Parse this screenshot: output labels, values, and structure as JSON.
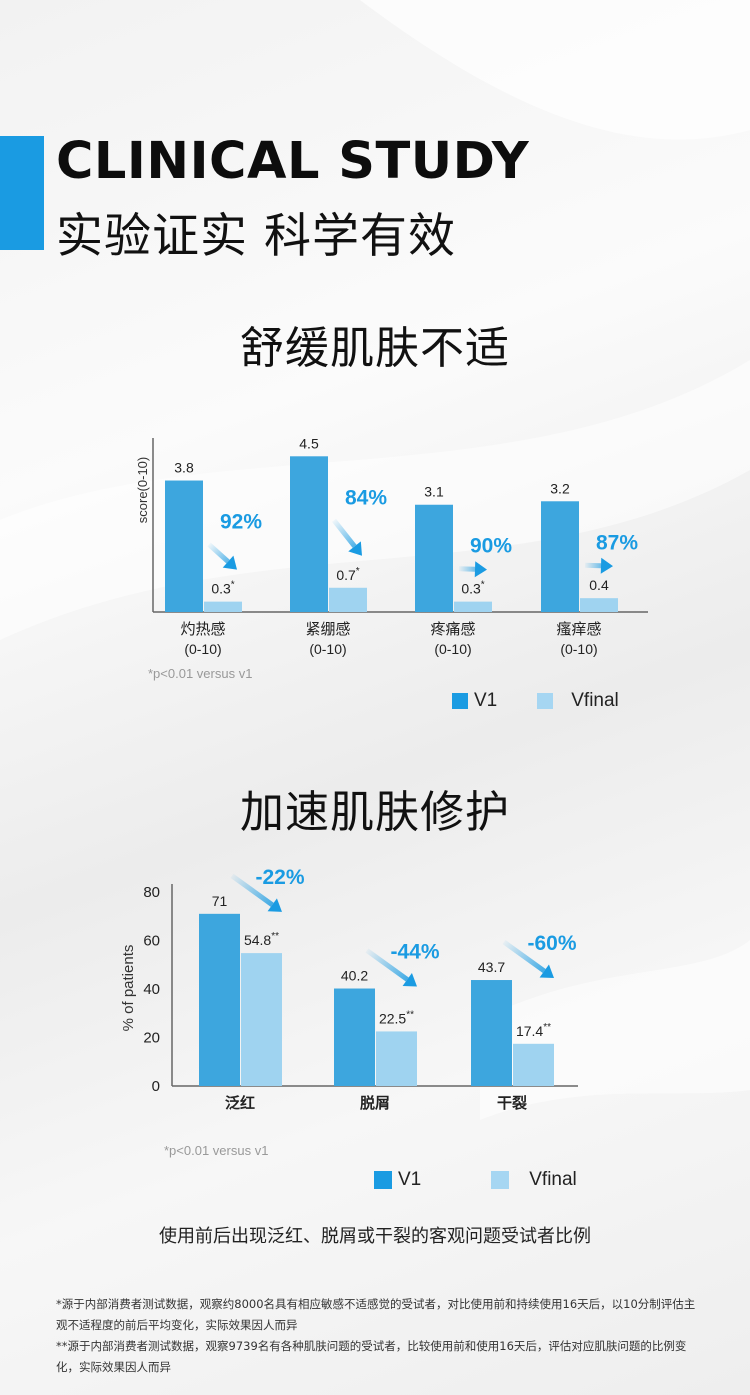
{
  "header": {
    "title_en": "CLINICAL STUDY",
    "title_cn": "实验证实 科学有效"
  },
  "colors": {
    "accent": "#1a9be2",
    "v1": "#3da6de",
    "vfinal": "#9fd3f0",
    "arrow": "#1a9be2"
  },
  "section1": {
    "title": "舒缓肌肤不适",
    "significance": "*p<0.01 versus v1",
    "legend": {
      "v1": "V1",
      "vfinal": "Vfinal"
    }
  },
  "section2": {
    "title": "加速肌肤修护",
    "significance": "*p<0.01 versus v1",
    "legend": {
      "v1": "V1",
      "vfinal": "Vfinal"
    },
    "caption": "使用前后出现泛红、脱屑或干裂的客观问题受试者比例"
  },
  "chart_data": [
    {
      "type": "bar",
      "title": "舒缓肌肤不适",
      "ylabel": "score(0-10)",
      "xlabel": "",
      "categories": [
        "灼热感",
        "紧绷感",
        "疼痛感",
        "瘙痒感"
      ],
      "category_sublabels": [
        "(0-10)",
        "(0-10)",
        "(0-10)",
        "(0-10)"
      ],
      "ylim": [
        0,
        5
      ],
      "grid": false,
      "legend_position": "bottom-right",
      "series": [
        {
          "name": "V1",
          "values": [
            3.8,
            4.5,
            3.1,
            3.2
          ],
          "labels": [
            "3.8",
            "4.5",
            "3.1",
            "3.2"
          ]
        },
        {
          "name": "Vfinal",
          "values": [
            0.3,
            0.7,
            0.3,
            0.4
          ],
          "labels": [
            "0.3",
            "0.7",
            "0.3",
            "0.4"
          ],
          "marks": [
            "*",
            "*",
            "*",
            ""
          ]
        }
      ],
      "annotations": [
        "92%",
        "84%",
        "90%",
        "87%"
      ]
    },
    {
      "type": "bar",
      "title": "加速肌肤修护",
      "ylabel": "% of patients",
      "xlabel": "",
      "categories": [
        "泛红",
        "脱屑",
        "干裂"
      ],
      "ylim": [
        0,
        80
      ],
      "yticks": [
        "0",
        "20",
        "40",
        "60",
        "80"
      ],
      "grid": false,
      "legend_position": "bottom-right",
      "series": [
        {
          "name": "V1",
          "values": [
            71,
            40.2,
            43.7
          ],
          "labels": [
            "71",
            "40.2",
            "43.7"
          ]
        },
        {
          "name": "Vfinal",
          "values": [
            54.8,
            22.5,
            17.4
          ],
          "labels": [
            "54.8",
            "22.5",
            "17.4"
          ],
          "marks": [
            "**",
            "**",
            "**"
          ]
        }
      ],
      "annotations": [
        "-22%",
        "-44%",
        "-60%"
      ]
    }
  ],
  "footnotes": [
    "*源于内部消费者测试数据，观察约8000名具有相应敏感不适感觉的受试者，对比使用前和持续使用16天后，以10分制评估主观不适程度的前后平均变化，实际效果因人而异",
    "**源于内部消费者测试数据，观察9739名有各种肌肤问题的受试者，比较使用前和使用16天后，评估对应肌肤问题的比例变化，实际效果因人而异"
  ]
}
